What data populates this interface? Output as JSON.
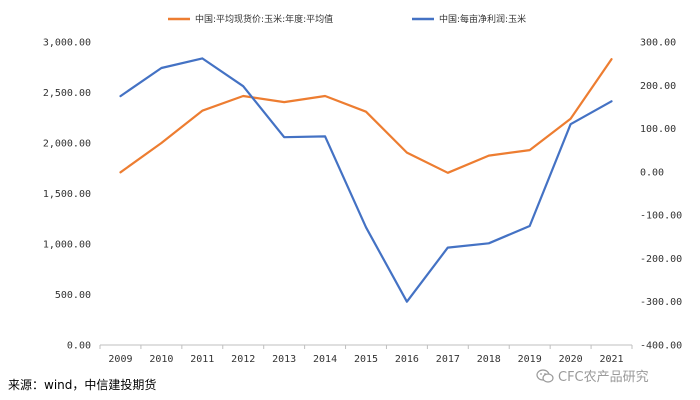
{
  "chart_data": {
    "type": "line",
    "title": "",
    "xlabel": "",
    "ylabel": "",
    "categories": [
      "2009",
      "2010",
      "2011",
      "2012",
      "2013",
      "2014",
      "2015",
      "2016",
      "2017",
      "2018",
      "2019",
      "2020",
      "2021"
    ],
    "series": [
      {
        "name": "中国:平均现货价:玉米:年度:平均值",
        "axis": "left",
        "color": "#ED7D31",
        "values": [
          1710,
          2000,
          2320,
          2465,
          2405,
          2465,
          2310,
          1905,
          1705,
          1875,
          1930,
          2240,
          2830
        ]
      },
      {
        "name": "中国:每亩净利润:玉米",
        "axis": "right",
        "color": "#4472C4",
        "values": [
          175,
          240,
          262,
          198,
          80,
          82,
          -128,
          -300,
          -175,
          -165,
          -125,
          110,
          163
        ]
      }
    ],
    "left_axis": {
      "min": 0,
      "max": 3000,
      "ticks": [
        0,
        500,
        1000,
        1500,
        2000,
        2500,
        3000
      ],
      "tick_labels": [
        "0.00",
        "500.00",
        "1,000.00",
        "1,500.00",
        "2,000.00",
        "2,500.00",
        "3,000.00"
      ]
    },
    "right_axis": {
      "min": -400,
      "max": 300,
      "ticks": [
        -400,
        -300,
        -200,
        -100,
        0,
        100,
        200,
        300
      ],
      "tick_labels": [
        "-400.00",
        "-300.00",
        "-200.00",
        "-100.00",
        "0.00",
        "100.00",
        "200.00",
        "300.00"
      ]
    },
    "grid": false,
    "legend_position": "top"
  },
  "footer": {
    "source": "来源：wind，中信建投期货",
    "watermark": "CFC农产品研究"
  },
  "icons": {
    "watermark_icon": "wechat-icon"
  }
}
